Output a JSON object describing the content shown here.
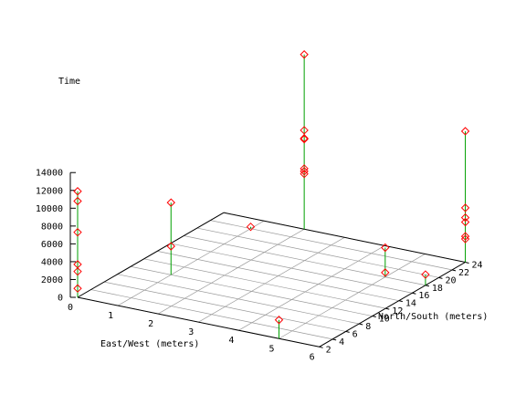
{
  "chart_data": {
    "type": "scatter",
    "projection": "3d-impulses",
    "title": "",
    "xlabel": "East/West (meters)",
    "ylabel": "North/South (meters)",
    "zlabel": "Time",
    "x_ticks": [
      "0",
      "1",
      "2",
      "3",
      "4",
      "5",
      "6"
    ],
    "y_ticks": [
      "2",
      "4",
      "6",
      "8",
      "10",
      "12",
      "14",
      "16",
      "18",
      "20",
      "22",
      "24"
    ],
    "z_ticks": [
      "0",
      "2000",
      "4000",
      "6000",
      "8000",
      "10000",
      "12000",
      "14000"
    ],
    "xlim": [
      0,
      6
    ],
    "ylim": [
      2,
      24
    ],
    "zlim": [
      0,
      14000
    ],
    "grid": true,
    "impulse_color": "#00a000",
    "marker_color": "#ff0000",
    "marker": "diamond",
    "series": [
      {
        "points": [
          {
            "x": 0,
            "y": 2,
            "z": 1000
          },
          {
            "x": 0,
            "y": 2,
            "z": 2900
          },
          {
            "x": 0,
            "y": 2,
            "z": 3700
          },
          {
            "x": 0,
            "y": 2,
            "z": 7300
          },
          {
            "x": 0,
            "y": 2,
            "z": 10800
          },
          {
            "x": 0,
            "y": 2,
            "z": 11900
          },
          {
            "x": 1,
            "y": 10,
            "z": 3200
          },
          {
            "x": 1,
            "y": 10,
            "z": 8100
          },
          {
            "x": 1,
            "y": 22,
            "z": 200
          },
          {
            "x": 2,
            "y": 24,
            "z": 6200
          },
          {
            "x": 2,
            "y": 24,
            "z": 6500
          },
          {
            "x": 2,
            "y": 24,
            "z": 6800
          },
          {
            "x": 2,
            "y": 24,
            "z": 10100
          },
          {
            "x": 2,
            "y": 24,
            "z": 10200
          },
          {
            "x": 2,
            "y": 24,
            "z": 11100
          },
          {
            "x": 2,
            "y": 24,
            "z": 19600
          },
          {
            "x": 5,
            "y": 2,
            "z": 2100
          },
          {
            "x": 5,
            "y": 18,
            "z": 3300
          },
          {
            "x": 5,
            "y": 18,
            "z": 500
          },
          {
            "x": 6,
            "y": 18,
            "z": 1200
          },
          {
            "x": 6,
            "y": 24,
            "z": 2600
          },
          {
            "x": 6,
            "y": 24,
            "z": 2900
          },
          {
            "x": 6,
            "y": 24,
            "z": 4500
          },
          {
            "x": 6,
            "y": 24,
            "z": 5000
          },
          {
            "x": 6,
            "y": 24,
            "z": 6100
          },
          {
            "x": 6,
            "y": 24,
            "z": 14700
          }
        ]
      }
    ]
  }
}
